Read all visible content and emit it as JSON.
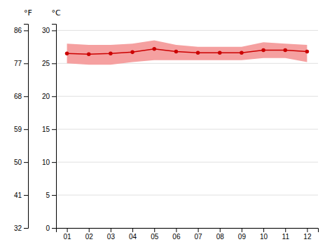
{
  "chart_data": {
    "type": "line",
    "x": [
      1,
      2,
      3,
      4,
      5,
      6,
      7,
      8,
      9,
      10,
      11,
      12
    ],
    "xlim": [
      0.5,
      12.5
    ],
    "xticks": [
      {
        "value": 1,
        "label": "01"
      },
      {
        "value": 2,
        "label": "02"
      },
      {
        "value": 3,
        "label": "03"
      },
      {
        "value": 4,
        "label": "04"
      },
      {
        "value": 5,
        "label": "05"
      },
      {
        "value": 6,
        "label": "06"
      },
      {
        "value": 7,
        "label": "07"
      },
      {
        "value": 8,
        "label": "08"
      },
      {
        "value": 9,
        "label": "09"
      },
      {
        "value": 10,
        "label": "10"
      },
      {
        "value": 11,
        "label": "11"
      },
      {
        "value": 12,
        "label": "12"
      }
    ],
    "y_label": "°C",
    "ylim": [
      0,
      31
    ],
    "yticks": [
      0,
      5,
      10,
      15,
      20,
      25,
      30
    ],
    "y2_label": "°F",
    "y2lim": [
      32,
      87.8
    ],
    "y2ticks": [
      32,
      41,
      50,
      59,
      68,
      77,
      86
    ],
    "grid": true,
    "series": [
      {
        "type": "area",
        "color": "#f5a0a0",
        "low": [
          25.0,
          24.8,
          24.8,
          25.2,
          25.5,
          25.5,
          25.5,
          25.5,
          25.5,
          25.8,
          25.8,
          25.2
        ],
        "high": [
          28.0,
          27.8,
          27.8,
          28.0,
          28.5,
          27.8,
          27.5,
          27.5,
          27.5,
          28.2,
          28.0,
          27.8
        ]
      },
      {
        "type": "line",
        "color": "#cc0000",
        "marker": "circle",
        "values": [
          26.5,
          26.4,
          26.5,
          26.7,
          27.2,
          26.8,
          26.6,
          26.6,
          26.6,
          27.0,
          27.0,
          26.8
        ]
      }
    ]
  }
}
